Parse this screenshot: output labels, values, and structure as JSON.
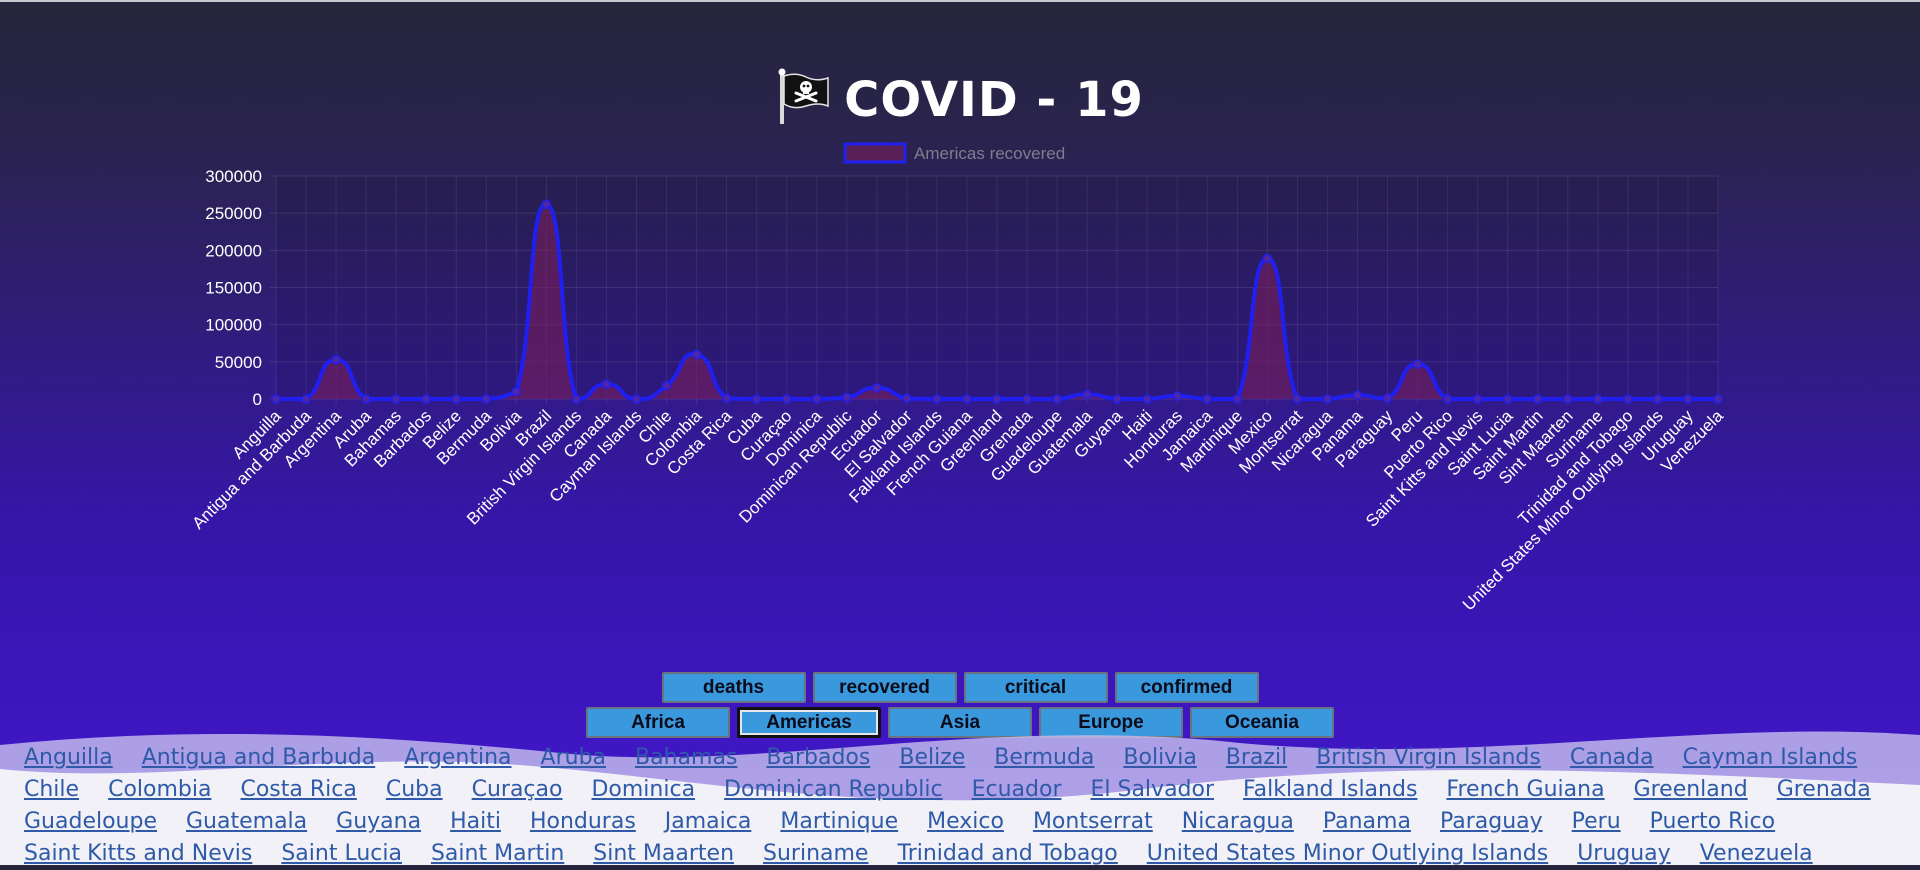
{
  "header": {
    "title": "COVID - 19"
  },
  "metric_buttons": [
    "deaths",
    "recovered",
    "critical",
    "confirmed"
  ],
  "region_buttons": [
    "Africa",
    "Americas",
    "Asia",
    "Europe",
    "Oceania"
  ],
  "active_region": "Americas",
  "colors": {
    "line": "#1f1ff0",
    "fill": "rgba(120, 30, 90, 0.6)",
    "button": "#3a98dc"
  },
  "chart_data": {
    "type": "area",
    "legend": {
      "label": "Americas recovered",
      "position": "top"
    },
    "ylim": [
      0,
      300000
    ],
    "yticks": [
      0,
      50000,
      100000,
      150000,
      200000,
      250000,
      300000
    ],
    "grid": true,
    "categories": [
      "Anguilla",
      "Antigua and Barbuda",
      "Argentina",
      "Aruba",
      "Bahamas",
      "Barbados",
      "Belize",
      "Bermuda",
      "Bolivia",
      "Brazil",
      "British Virgin Islands",
      "Canada",
      "Cayman Islands",
      "Chile",
      "Colombia",
      "Costa Rica",
      "Cuba",
      "Curaçao",
      "Dominica",
      "Dominican Republic",
      "Ecuador",
      "El Salvador",
      "Falkland Islands",
      "French Guiana",
      "Greenland",
      "Grenada",
      "Guadeloupe",
      "Guatemala",
      "Guyana",
      "Haiti",
      "Honduras",
      "Jamaica",
      "Martinique",
      "Mexico",
      "Montserrat",
      "Nicaragua",
      "Panama",
      "Paraguay",
      "Peru",
      "Puerto Rico",
      "Saint Kitts and Nevis",
      "Saint Lucia",
      "Saint Martin",
      "Sint Maarten",
      "Suriname",
      "Trinidad and Tobago",
      "United States Minor Outlying Islands",
      "Uruguay",
      "Venezuela"
    ],
    "series": [
      {
        "name": "Americas recovered",
        "values": [
          0,
          0,
          53000,
          0,
          0,
          0,
          0,
          0,
          10000,
          262000,
          0,
          20000,
          0,
          18000,
          60000,
          1000,
          0,
          0,
          0,
          2000,
          15000,
          1000,
          0,
          0,
          0,
          0,
          0,
          6000,
          0,
          0,
          4000,
          0,
          0,
          189000,
          0,
          0,
          5000,
          1000,
          47000,
          0,
          0,
          0,
          0,
          0,
          0,
          0,
          0,
          0,
          0
        ]
      }
    ]
  },
  "countries": [
    "Anguilla",
    "Antigua and Barbuda",
    "Argentina",
    "Aruba",
    "Bahamas",
    "Barbados",
    "Belize",
    "Bermuda",
    "Bolivia",
    "Brazil",
    "British Virgin Islands",
    "Canada",
    "Cayman Islands",
    "Chile",
    "Colombia",
    "Costa Rica",
    "Cuba",
    "Curaçao",
    "Dominica",
    "Dominican Republic",
    "Ecuador",
    "El Salvador",
    "Falkland Islands",
    "French Guiana",
    "Greenland",
    "Grenada",
    "Guadeloupe",
    "Guatemala",
    "Guyana",
    "Haiti",
    "Honduras",
    "Jamaica",
    "Martinique",
    "Mexico",
    "Montserrat",
    "Nicaragua",
    "Panama",
    "Paraguay",
    "Peru",
    "Puerto Rico",
    "Saint Kitts and Nevis",
    "Saint Lucia",
    "Saint Martin",
    "Sint Maarten",
    "Suriname",
    "Trinidad and Tobago",
    "United States Minor Outlying Islands",
    "Uruguay",
    "Venezuela"
  ]
}
